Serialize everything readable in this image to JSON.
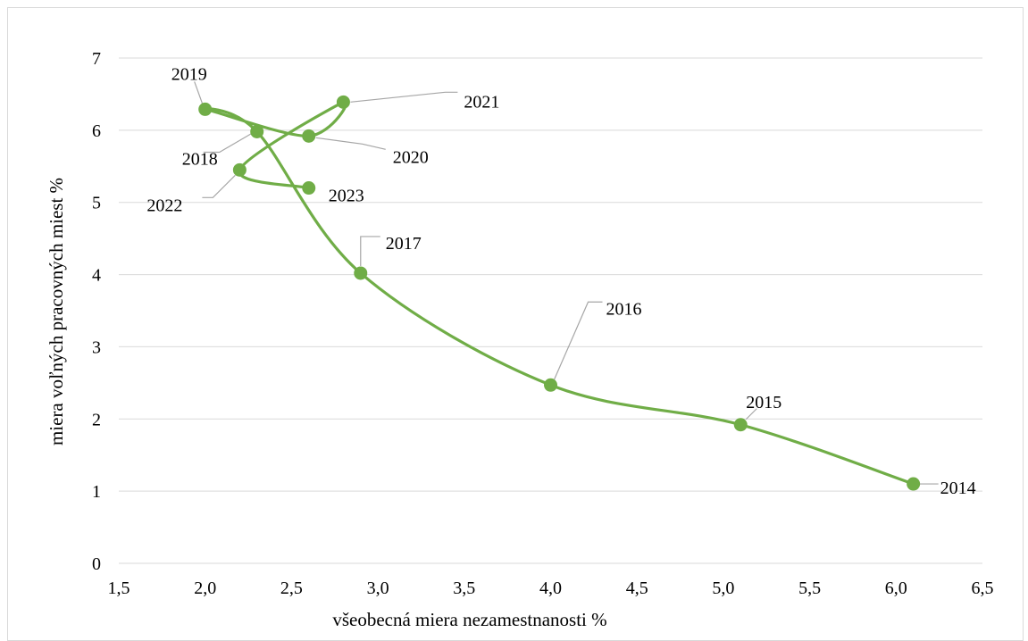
{
  "colors": {
    "series": "#70ad47",
    "grid": "#d9d9d9",
    "leader": "#a6a6a6"
  },
  "chart_data": {
    "type": "line",
    "title": "",
    "xlabel": "všeobecná miera nezamestnanosti %",
    "ylabel": "miera voľných pracovných miest %",
    "xlim": [
      1.5,
      6.5
    ],
    "ylim": [
      0,
      7
    ],
    "x_ticks": [
      "1,5",
      "2,0",
      "2,5",
      "3,0",
      "3,5",
      "4,0",
      "4,5",
      "5,0",
      "5,5",
      "6,0",
      "6,5"
    ],
    "y_ticks": [
      "0",
      "1",
      "2",
      "3",
      "4",
      "5",
      "6",
      "7"
    ],
    "grid": "horizontal",
    "legend": "none",
    "smooth": true,
    "points": [
      {
        "label": "2014",
        "x": 6.1,
        "y": 1.1
      },
      {
        "label": "2015",
        "x": 5.1,
        "y": 1.92
      },
      {
        "label": "2016",
        "x": 4.0,
        "y": 2.47
      },
      {
        "label": "2017",
        "x": 2.9,
        "y": 4.02
      },
      {
        "label": "2018",
        "x": 2.3,
        "y": 5.98
      },
      {
        "label": "2019",
        "x": 2.0,
        "y": 6.29
      },
      {
        "label": "2020",
        "x": 2.6,
        "y": 5.92
      },
      {
        "label": "2021",
        "x": 2.8,
        "y": 6.39
      },
      {
        "label": "2022",
        "x": 2.2,
        "y": 5.45
      },
      {
        "label": "2023",
        "x": 2.6,
        "y": 5.2
      }
    ]
  }
}
